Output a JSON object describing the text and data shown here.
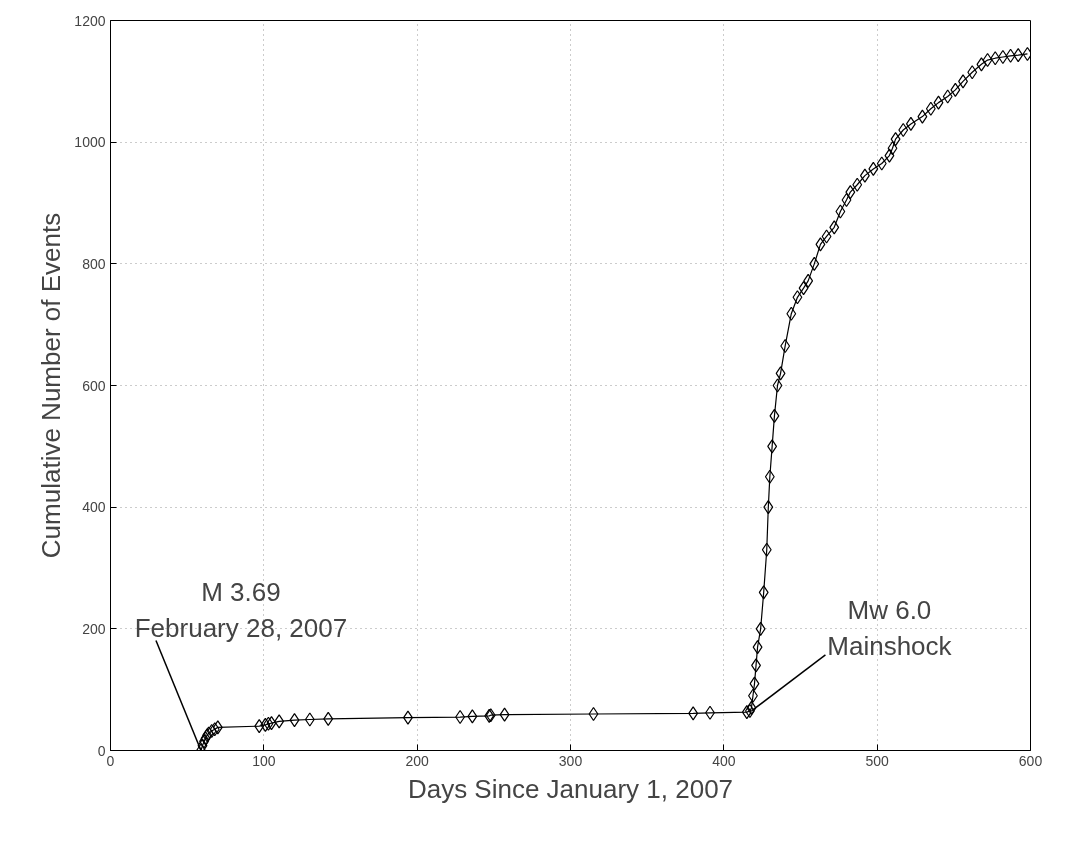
{
  "chart_data": {
    "type": "line",
    "xlabel": "Days Since January 1, 2007",
    "ylabel": "Cumulative Number of Events",
    "xlim": [
      0,
      600
    ],
    "xticks": [
      0,
      100,
      200,
      300,
      400,
      500,
      600
    ],
    "ylim": [
      0,
      1200
    ],
    "yticks": [
      0,
      200,
      400,
      600,
      800,
      1000,
      1200
    ],
    "grid": true,
    "marker": "diamond",
    "line_style": "solid",
    "series": [
      {
        "color": "#000000",
        "x": [
          59,
          60,
          61,
          62,
          63,
          64,
          66,
          68,
          70,
          97,
          101,
          103,
          105,
          110,
          120,
          130,
          142,
          194,
          228,
          236,
          247,
          248,
          257,
          315,
          380,
          391,
          415,
          417,
          418,
          419,
          420,
          421,
          422,
          424,
          426,
          428,
          429,
          430,
          431.5,
          433,
          435,
          437,
          440,
          444,
          448,
          452,
          455,
          459,
          463,
          467,
          472,
          476,
          480,
          482.5,
          487,
          492,
          497.5,
          503,
          508,
          510,
          512,
          517,
          522,
          529.5,
          535,
          540,
          546,
          551,
          556,
          562,
          568,
          572,
          577,
          582,
          587,
          592,
          598
        ],
        "values": [
          0,
          8,
          15,
          20,
          25,
          28,
          32,
          35,
          38,
          40,
          42,
          44,
          45,
          48,
          50,
          51,
          52,
          54,
          55,
          56,
          57,
          58,
          59,
          60,
          61,
          62,
          63,
          65,
          70,
          90,
          110,
          140,
          170,
          200,
          260,
          330,
          400,
          450,
          500,
          550,
          600,
          620,
          665,
          718,
          745,
          760,
          772,
          800,
          832,
          845,
          860,
          886,
          905,
          918,
          930,
          945,
          956,
          965,
          978,
          990,
          1005,
          1020,
          1030,
          1042,
          1055,
          1065,
          1075,
          1086,
          1100,
          1115,
          1128,
          1135,
          1138,
          1140,
          1142,
          1143,
          1145
        ]
      }
    ],
    "annotations": [
      {
        "text": "M 3.69\nFebruary 28, 2007",
        "x": 59,
        "y": 0
      },
      {
        "text": "Mw 6.0\nMainshock",
        "x": 418,
        "y": 65
      }
    ]
  }
}
